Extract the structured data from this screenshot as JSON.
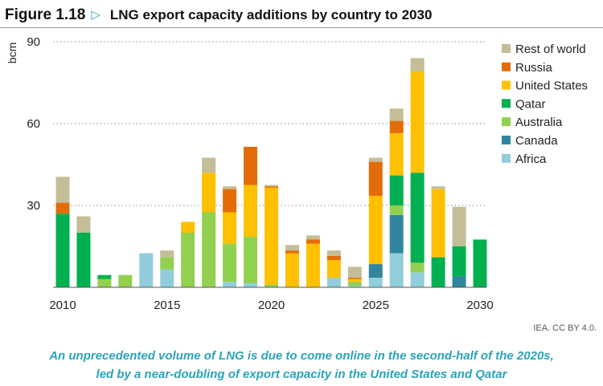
{
  "figure": {
    "number": "Figure 1.18",
    "arrow_icon": "triangle-right-outline-icon",
    "title": "LNG export capacity additions by country to 2030",
    "credit": "IEA. CC BY 4.0.",
    "caption_line1": "An unprecedented volume of LNG is due to come online in the second-half of the 2020s,",
    "caption_line2": "led by a near-doubling of export capacity in the United States and Qatar"
  },
  "chart_data": {
    "type": "bar",
    "stacked": true,
    "ylabel": "bcm",
    "ylim": [
      0,
      90
    ],
    "yticks": [
      30,
      60,
      90
    ],
    "grid": "horizontal dotted",
    "legend_position": "top-right",
    "x": [
      2010,
      2011,
      2012,
      2013,
      2014,
      2015,
      2016,
      2017,
      2018,
      2019,
      2020,
      2021,
      2022,
      2023,
      2024,
      2025,
      2026,
      2027,
      2028,
      2029,
      2030
    ],
    "xticks": [
      2010,
      2015,
      2020,
      2025,
      2030
    ],
    "series": [
      {
        "name": "Africa",
        "color": "#92cddc",
        "values": [
          0,
          0,
          0,
          0,
          12.5,
          6.5,
          0,
          0,
          2,
          1.5,
          0,
          0,
          0,
          3.5,
          0.5,
          3.5,
          12.5,
          5.5,
          0,
          0,
          0
        ]
      },
      {
        "name": "Canada",
        "color": "#31859c",
        "values": [
          0,
          0,
          0,
          0,
          0,
          0,
          0,
          0,
          0,
          0,
          0,
          0,
          0,
          0,
          0,
          5,
          14,
          0,
          0,
          4,
          0
        ]
      },
      {
        "name": "Australia",
        "color": "#92d050",
        "values": [
          0,
          0,
          3,
          4.5,
          0,
          4.5,
          20,
          27.5,
          14,
          17,
          1,
          0,
          0,
          0,
          1.5,
          0,
          3.5,
          3.5,
          0,
          0,
          0
        ]
      },
      {
        "name": "Qatar",
        "color": "#00b050",
        "values": [
          27,
          20,
          1.5,
          0,
          0,
          0,
          0,
          0,
          0,
          0,
          0,
          0,
          0,
          0,
          0,
          0,
          11,
          33,
          11,
          11,
          17.5
        ]
      },
      {
        "name": "United States",
        "color": "#ffc000",
        "values": [
          0,
          0,
          0,
          0,
          0,
          0,
          4,
          14.5,
          11.5,
          19,
          35.5,
          12.5,
          16,
          6.5,
          1,
          25,
          15.5,
          37,
          25,
          0,
          0
        ]
      },
      {
        "name": "Russia",
        "color": "#e36c09",
        "values": [
          4,
          0,
          0,
          0,
          0,
          0,
          0,
          0,
          8.5,
          14,
          0.5,
          1,
          1.5,
          1.5,
          0.5,
          12.5,
          4.5,
          0,
          0,
          0,
          0
        ]
      },
      {
        "name": "Rest of world",
        "color": "#c4bd97",
        "values": [
          9.5,
          6,
          0,
          0,
          0,
          2.5,
          0,
          5.5,
          1,
          0,
          0.5,
          2,
          1.5,
          2,
          4,
          1.5,
          4.5,
          5,
          1,
          14.5,
          0
        ]
      }
    ],
    "legend_order": [
      "Rest of world",
      "Russia",
      "United States",
      "Qatar",
      "Australia",
      "Canada",
      "Africa"
    ]
  }
}
